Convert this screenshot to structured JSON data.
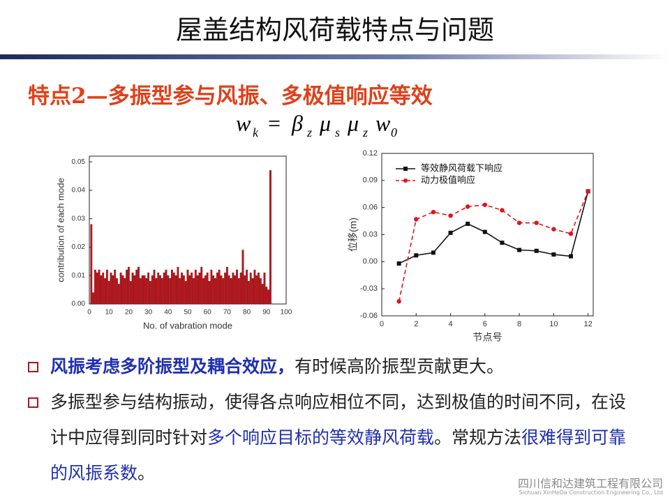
{
  "slide": {
    "title": "屋盖结构风荷载特点与问题",
    "subtitle": "特点2—多振型参与风振、多极值响应等效",
    "formula": {
      "lhs": {
        "base": "w",
        "sub": "k"
      },
      "eq": "=",
      "rhs": [
        {
          "base": "β",
          "sub": "z"
        },
        {
          "base": "μ",
          "sub": "s"
        },
        {
          "base": "μ",
          "sub": "z"
        },
        {
          "base": "w",
          "sub": "0"
        }
      ]
    },
    "bullets": [
      [
        {
          "text": "风振考虑多阶振型及耦合效应，",
          "color": "#1f2fb0",
          "bold": true
        },
        {
          "text": "有时候高阶振型贡献更大。",
          "color": "#222222",
          "bold": false
        }
      ],
      [
        {
          "text": "多振型参与结构振动，使得各点响应相位不同，达到极值的时间不同，在设计中应得到同时针对",
          "color": "#222222",
          "bold": false
        },
        {
          "text": "多个响应目标的等效静风荷载",
          "color": "#1f2fb0",
          "bold": false
        },
        {
          "text": "。常规方法",
          "color": "#222222",
          "bold": false
        },
        {
          "text": "很难得到可靠的风振系数",
          "color": "#1f2fb0",
          "bold": false
        },
        {
          "text": "。",
          "color": "#222222",
          "bold": false
        }
      ]
    ],
    "watermark": {
      "name": "四川信和达建筑工程有限公司",
      "english": "Sichuan XinHeDa Construction Engineering Co., Ltd"
    }
  },
  "chart_data": [
    {
      "type": "bar",
      "xlabel": "No. of vabration mode",
      "ylabel": "contribution of each mode",
      "color": "#c0141a",
      "x": [
        1,
        2,
        3,
        4,
        5,
        6,
        7,
        8,
        9,
        10,
        11,
        12,
        13,
        14,
        15,
        16,
        17,
        18,
        19,
        20,
        21,
        22,
        23,
        24,
        25,
        26,
        27,
        28,
        29,
        30,
        31,
        32,
        33,
        34,
        35,
        36,
        37,
        38,
        39,
        40,
        41,
        42,
        43,
        44,
        45,
        46,
        47,
        48,
        49,
        50,
        51,
        52,
        53,
        54,
        55,
        56,
        57,
        58,
        59,
        60,
        61,
        62,
        63,
        64,
        65,
        66,
        67,
        68,
        69,
        70,
        71,
        72,
        73,
        74,
        75,
        76,
        77,
        78,
        79,
        80,
        81,
        82,
        83,
        84,
        85,
        86,
        87,
        88,
        89,
        90,
        91,
        92
      ],
      "values": [
        0.028,
        0.004,
        0.012,
        0.011,
        0.012,
        0.01,
        0.011,
        0.009,
        0.012,
        0.008,
        0.011,
        0.01,
        0.012,
        0.009,
        0.007,
        0.011,
        0.01,
        0.009,
        0.012,
        0.013,
        0.008,
        0.011,
        0.01,
        0.012,
        0.013,
        0.009,
        0.01,
        0.01,
        0.009,
        0.011,
        0.008,
        0.01,
        0.012,
        0.009,
        0.011,
        0.01,
        0.009,
        0.011,
        0.012,
        0.01,
        0.009,
        0.012,
        0.011,
        0.01,
        0.013,
        0.009,
        0.011,
        0.01,
        0.008,
        0.012,
        0.01,
        0.011,
        0.009,
        0.012,
        0.01,
        0.011,
        0.013,
        0.009,
        0.01,
        0.011,
        0.008,
        0.012,
        0.01,
        0.009,
        0.011,
        0.012,
        0.01,
        0.009,
        0.011,
        0.013,
        0.01,
        0.009,
        0.011,
        0.01,
        0.012,
        0.009,
        0.011,
        0.019,
        0.01,
        0.012,
        0.008,
        0.011,
        0.009,
        0.012,
        0.01,
        0.011,
        0.009,
        0.007,
        0.011,
        0.006,
        0.005,
        0.047
      ],
      "xlim": [
        0,
        100
      ],
      "xticks": [
        0,
        10,
        20,
        30,
        40,
        50,
        60,
        70,
        80,
        90,
        100
      ],
      "ylim": [
        0,
        0.052
      ],
      "yticks": [
        {
          "value": 0,
          "label": "0.00"
        },
        0.01,
        0.02,
        0.03,
        0.04,
        0.05
      ]
    },
    {
      "type": "line",
      "xlabel": "节点号",
      "ylabel": "位移(m)",
      "legend": "top-left",
      "x": [
        1,
        2,
        3,
        4,
        5,
        6,
        7,
        8,
        9,
        10,
        11,
        12
      ],
      "series": [
        {
          "name": "等效静风荷载下响应",
          "color": "#111111",
          "dash": false,
          "marker": "square",
          "values": [
            -0.002,
            0.007,
            0.01,
            0.032,
            0.042,
            0.033,
            0.021,
            0.013,
            0.012,
            0.008,
            0.006,
            0.078
          ]
        },
        {
          "name": "动力极值响应",
          "color": "#e0141a",
          "dash": true,
          "marker": "circle",
          "values": [
            -0.044,
            0.047,
            0.055,
            0.051,
            0.061,
            0.063,
            0.057,
            0.043,
            0.043,
            0.036,
            0.031,
            0.078
          ]
        }
      ],
      "xlim": [
        0,
        12.3
      ],
      "xticks": [
        0,
        2,
        4,
        6,
        8,
        10,
        12
      ],
      "ylim": [
        -0.06,
        0.12
      ],
      "yticks": [
        -0.06,
        -0.03,
        {
          "value": 0,
          "label": "0.00"
        },
        0.03,
        0.06,
        0.09,
        0.12
      ]
    }
  ]
}
